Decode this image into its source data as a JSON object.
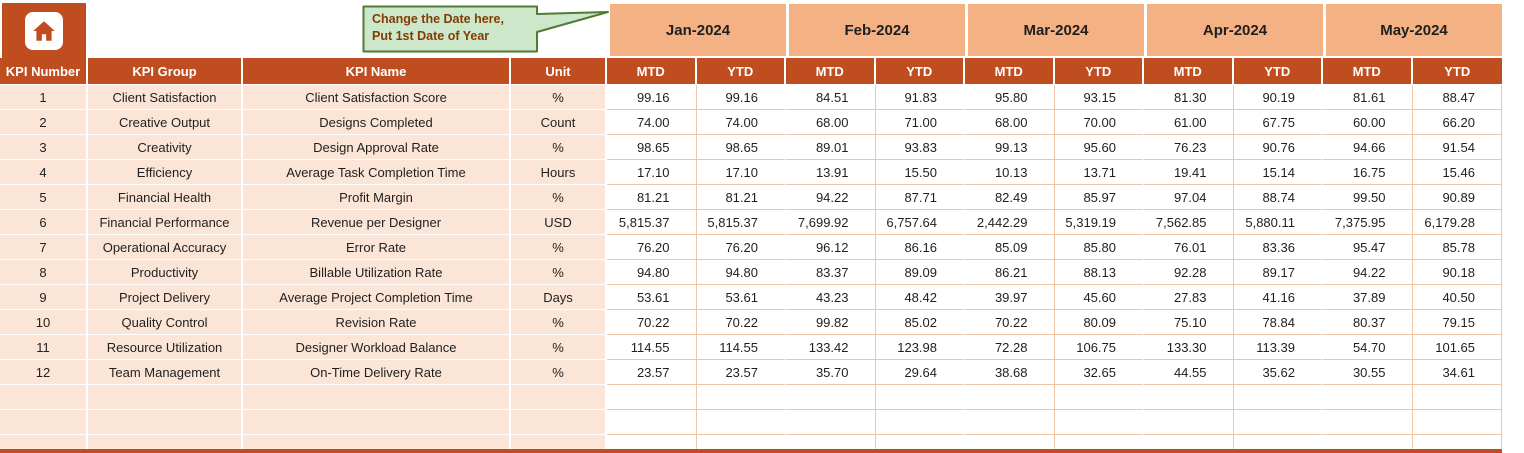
{
  "theme": {
    "header_bg": "#bf4d20",
    "month_bg": "#f4b183",
    "left_bg": "#fbe5d6",
    "grid_line": "#f0c6a6",
    "text": "#1f1f1f",
    "callout_bg": "#cde7cb",
    "callout_border": "#4f7b33",
    "callout_text": "#833c00"
  },
  "callout": {
    "line1": "Change the Date here,",
    "line2": "Put 1st Date of Year"
  },
  "months": [
    "Jan-2024",
    "Feb-2024",
    "Mar-2024",
    "Apr-2024",
    "May-2024"
  ],
  "subheaders": [
    "MTD",
    "YTD"
  ],
  "columns": [
    "KPI Number",
    "KPI Group",
    "KPI Name",
    "Unit"
  ],
  "rows": [
    {
      "num": "1",
      "group": "Client Satisfaction",
      "name": "Client Satisfaction Score",
      "unit": "%",
      "values": [
        "99.16",
        "99.16",
        "84.51",
        "91.83",
        "95.80",
        "93.15",
        "81.30",
        "90.19",
        "81.61",
        "88.47"
      ]
    },
    {
      "num": "2",
      "group": "Creative Output",
      "name": "Designs Completed",
      "unit": "Count",
      "values": [
        "74.00",
        "74.00",
        "68.00",
        "71.00",
        "68.00",
        "70.00",
        "61.00",
        "67.75",
        "60.00",
        "66.20"
      ]
    },
    {
      "num": "3",
      "group": "Creativity",
      "name": "Design Approval Rate",
      "unit": "%",
      "values": [
        "98.65",
        "98.65",
        "89.01",
        "93.83",
        "99.13",
        "95.60",
        "76.23",
        "90.76",
        "94.66",
        "91.54"
      ]
    },
    {
      "num": "4",
      "group": "Efficiency",
      "name": "Average Task Completion Time",
      "unit": "Hours",
      "values": [
        "17.10",
        "17.10",
        "13.91",
        "15.50",
        "10.13",
        "13.71",
        "19.41",
        "15.14",
        "16.75",
        "15.46"
      ]
    },
    {
      "num": "5",
      "group": "Financial Health",
      "name": "Profit Margin",
      "unit": "%",
      "values": [
        "81.21",
        "81.21",
        "94.22",
        "87.71",
        "82.49",
        "85.97",
        "97.04",
        "88.74",
        "99.50",
        "90.89"
      ]
    },
    {
      "num": "6",
      "group": "Financial Performance",
      "name": "Revenue per Designer",
      "unit": "USD",
      "values": [
        "5,815.37",
        "5,815.37",
        "7,699.92",
        "6,757.64",
        "2,442.29",
        "5,319.19",
        "7,562.85",
        "5,880.11",
        "7,375.95",
        "6,179.28"
      ]
    },
    {
      "num": "7",
      "group": "Operational Accuracy",
      "name": "Error Rate",
      "unit": "%",
      "values": [
        "76.20",
        "76.20",
        "96.12",
        "86.16",
        "85.09",
        "85.80",
        "76.01",
        "83.36",
        "95.47",
        "85.78"
      ]
    },
    {
      "num": "8",
      "group": "Productivity",
      "name": "Billable Utilization Rate",
      "unit": "%",
      "values": [
        "94.80",
        "94.80",
        "83.37",
        "89.09",
        "86.21",
        "88.13",
        "92.28",
        "89.17",
        "94.22",
        "90.18"
      ]
    },
    {
      "num": "9",
      "group": "Project Delivery",
      "name": "Average Project Completion Time",
      "unit": "Days",
      "values": [
        "53.61",
        "53.61",
        "43.23",
        "48.42",
        "39.97",
        "45.60",
        "27.83",
        "41.16",
        "37.89",
        "40.50"
      ]
    },
    {
      "num": "10",
      "group": "Quality Control",
      "name": "Revision Rate",
      "unit": "%",
      "values": [
        "70.22",
        "70.22",
        "99.82",
        "85.02",
        "70.22",
        "80.09",
        "75.10",
        "78.84",
        "80.37",
        "79.15"
      ]
    },
    {
      "num": "11",
      "group": "Resource Utilization",
      "name": "Designer Workload Balance",
      "unit": "%",
      "values": [
        "114.55",
        "114.55",
        "133.42",
        "123.98",
        "72.28",
        "106.75",
        "133.30",
        "113.39",
        "54.70",
        "101.65"
      ]
    },
    {
      "num": "12",
      "group": "Team Management",
      "name": "On-Time Delivery Rate",
      "unit": "%",
      "values": [
        "23.57",
        "23.57",
        "35.70",
        "29.64",
        "38.68",
        "32.65",
        "44.55",
        "35.62",
        "30.55",
        "34.61"
      ]
    }
  ],
  "empty_rows": 3
}
